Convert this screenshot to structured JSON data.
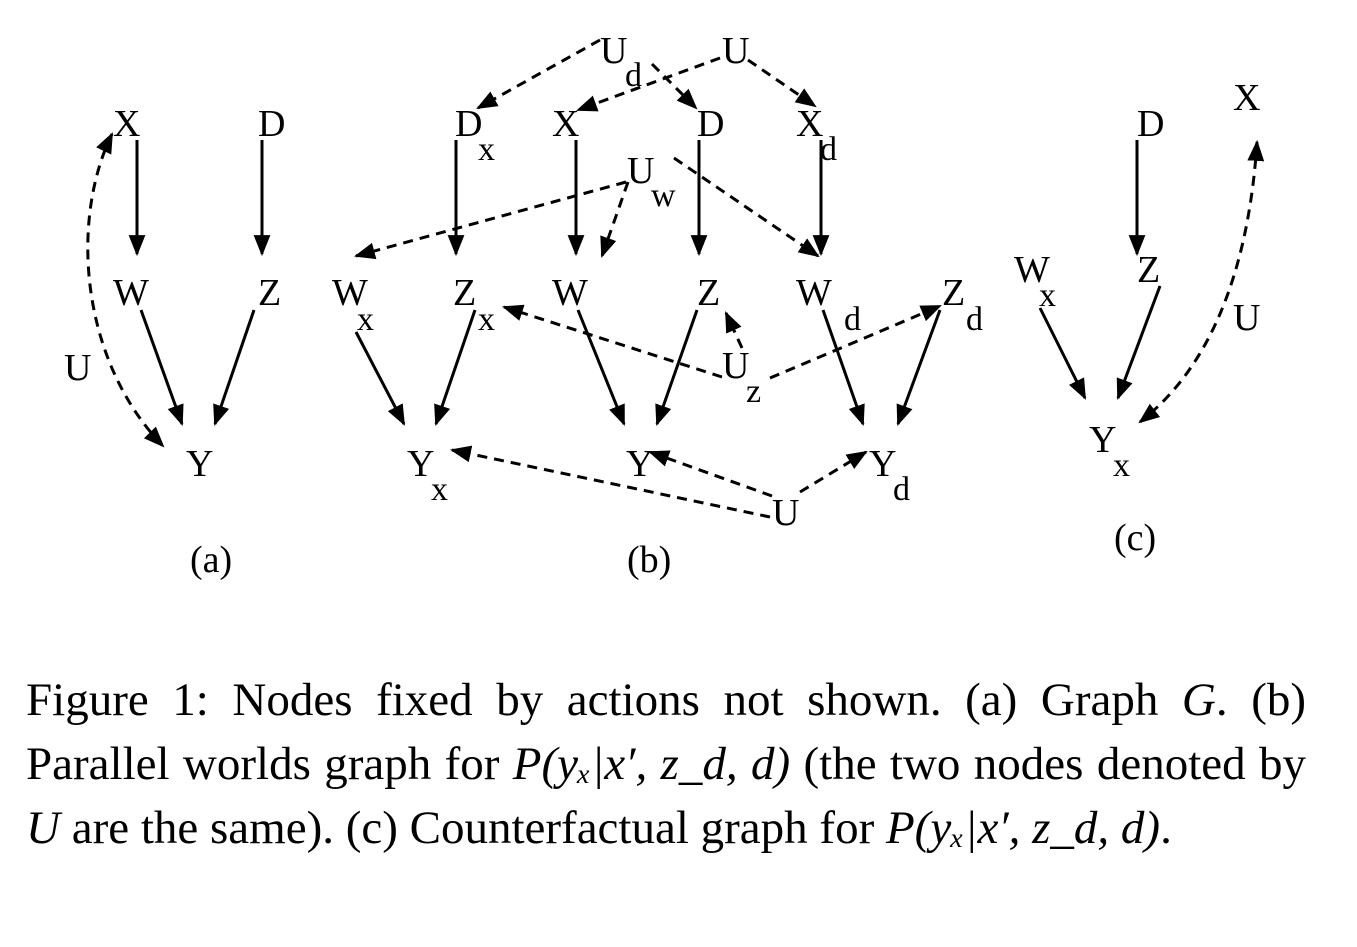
{
  "panels": {
    "a": {
      "label": "(a)",
      "nodes": {
        "X": "X",
        "D": "D",
        "W": "W",
        "Z": "Z",
        "Y": "Y",
        "U": "U"
      }
    },
    "b": {
      "label": "(b)",
      "nodes": {
        "Ud": "U",
        "Ud_sub": "d",
        "U_top": "U",
        "Dx": "D",
        "Dx_sub": "x",
        "X": "X",
        "D": "D",
        "Xd": "X",
        "Xd_sub": "d",
        "Uw": "U",
        "Uw_sub": "w",
        "Wx": "W",
        "Wx_sub": "x",
        "Zx": "Z",
        "Zx_sub": "x",
        "W": "W",
        "Z": "Z",
        "Wd": "W",
        "Wd_sub": "d",
        "Zd": "Z",
        "Zd_sub": "d",
        "Uz": "U",
        "Uz_sub": "z",
        "Yx": "Y",
        "Yx_sub": "x",
        "Y": "Y",
        "Yd": "Y",
        "Yd_sub": "d",
        "U_bottom": "U"
      }
    },
    "c": {
      "label": "(c)",
      "nodes": {
        "D": "D",
        "X": "X",
        "Wx": "W",
        "Wx_sub": "x",
        "Z": "Z",
        "U": "U",
        "Yx": "Y",
        "Yx_sub": "x"
      }
    }
  },
  "caption": {
    "part1": "Figure 1: Nodes fixed by actions not shown. (a) Graph ",
    "G": "G",
    "part2": ". (b) Parallel worlds graph for ",
    "expr1": "P(yₓ|x′, z_d, d)",
    "part3": " (the two nodes denoted by ",
    "U": "U",
    "part4": " are the same). (c) Counterfactual graph for ",
    "expr2": "P(yₓ|x′, z_d, d)",
    "part5": "."
  }
}
